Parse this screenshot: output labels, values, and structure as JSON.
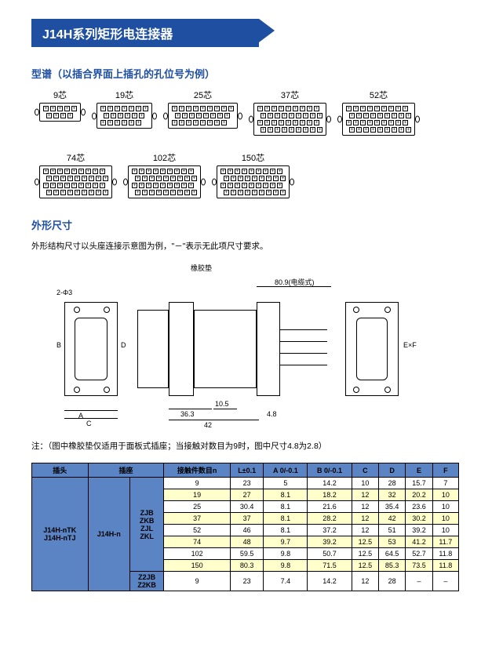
{
  "banner_title": "J14H系列矩形电连接器",
  "section1_title": "型谱（以插合界面上插孔的孔位号为例）",
  "pin_counts_row1": [
    "9芯",
    "19芯",
    "25芯",
    "37芯"
  ],
  "pin_counts_row2": [
    "52芯",
    "74芯",
    "102芯",
    "150芯"
  ],
  "pin_layouts": {
    "9": [
      5,
      4
    ],
    "19": [
      7,
      6,
      6
    ],
    "25": [
      9,
      8,
      8
    ],
    "37": [
      10,
      9,
      9,
      9
    ],
    "52": [
      11,
      10,
      11,
      10,
      10
    ],
    "74": [
      13,
      12,
      13,
      12,
      12,
      12
    ],
    "102": [
      15,
      14,
      15,
      14,
      15,
      14,
      15
    ],
    "150": [
      19,
      18,
      19,
      18,
      19,
      18,
      19,
      20
    ]
  },
  "section2_title": "外形尺寸",
  "section2_sub": "外形结构尺寸以头座连接示意图为例，\"－\"表示无此项尺寸要求。",
  "drawing_labels": {
    "rubber": "橡胶垫",
    "cable": "80.9(电缆式)",
    "2phi3": "2-Φ3",
    "B": "B",
    "A": "A",
    "C": "C",
    "D": "D",
    "ExF": "E×F",
    "d363": "36.3",
    "d105": "10.5",
    "d42": "42",
    "d48": "4.8"
  },
  "note2": "注：（图中橡胶垫仅适用于面板式插座；当接触对数目为9时，图中尺寸4.8为2.8）",
  "table": {
    "header": [
      "插头",
      "插座",
      "",
      "接触件数目n",
      "L ±0.1",
      "A <sup>0</sup><sub>-0.1</sub>",
      "B <sup>0</sup><sub>-0.1</sub>",
      "C",
      "D",
      "E",
      "F"
    ],
    "header_plain": [
      "插头",
      "插座",
      "",
      "接触件数目n",
      "L±0.1",
      "A 0/-0.1",
      "B 0/-0.1",
      "C",
      "D",
      "E",
      "F"
    ],
    "left1": "J14H-nTK\nJ14H-nTJ",
    "left2": "J14H-n",
    "mid1": "ZJB\nZKB\nZJL\nZKL",
    "mid2": "Z2JB\nZ2KB",
    "rows_main": [
      {
        "n": "9",
        "L": "23",
        "A": "5",
        "B": "14.2",
        "C": "10",
        "D": "28",
        "E": "15.7",
        "F": "7"
      },
      {
        "n": "19",
        "L": "27",
        "A": "8.1",
        "B": "18.2",
        "C": "12",
        "D": "32",
        "E": "20.2",
        "F": "10"
      },
      {
        "n": "25",
        "L": "30.4",
        "A": "8.1",
        "B": "21.6",
        "C": "12",
        "D": "35.4",
        "E": "23.6",
        "F": "10"
      },
      {
        "n": "37",
        "L": "37",
        "A": "8.1",
        "B": "28.2",
        "C": "12",
        "D": "42",
        "E": "30.2",
        "F": "10"
      },
      {
        "n": "52",
        "L": "46",
        "A": "8.1",
        "B": "37.2",
        "C": "12",
        "D": "51",
        "E": "39.2",
        "F": "10"
      },
      {
        "n": "74",
        "L": "48",
        "A": "9.7",
        "B": "39.2",
        "C": "12.5",
        "D": "53",
        "E": "41.2",
        "F": "11.7"
      },
      {
        "n": "102",
        "L": "59.5",
        "A": "9.8",
        "B": "50.7",
        "C": "12.5",
        "D": "64.5",
        "E": "52.7",
        "F": "11.8"
      },
      {
        "n": "150",
        "L": "80.3",
        "A": "9.8",
        "B": "71.5",
        "C": "12.5",
        "D": "85.3",
        "E": "73.5",
        "F": "11.8"
      }
    ],
    "row_bottom": {
      "n": "9",
      "L": "23",
      "A": "7.4",
      "B": "14.2",
      "C": "12",
      "D": "28",
      "E": "–",
      "F": "–"
    }
  },
  "colors": {
    "banner": "#1f4fa0",
    "th": "#5a84c4",
    "alt": "#ffffcc"
  }
}
